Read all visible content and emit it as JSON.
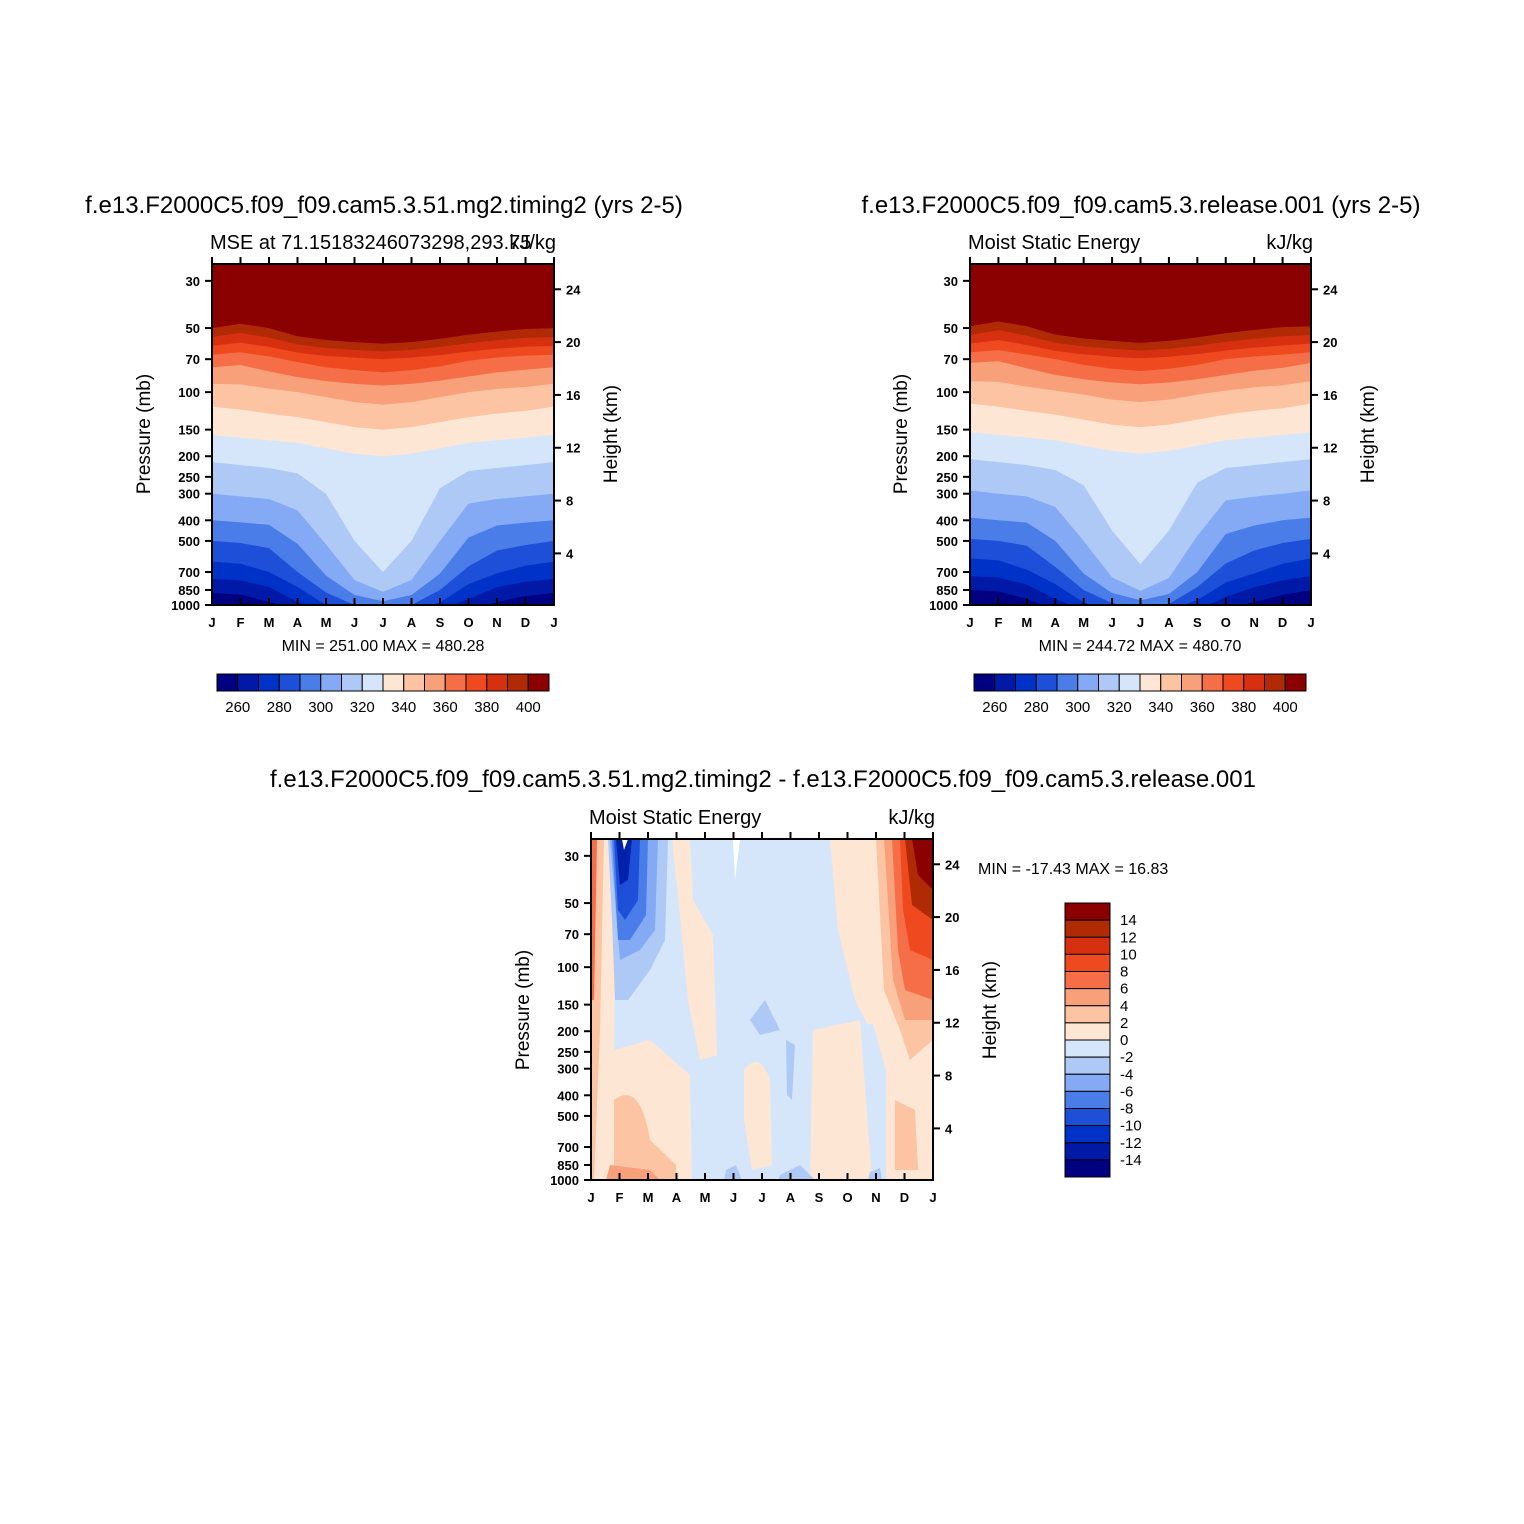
{
  "chart_data": [
    {
      "type": "heatmap",
      "title": "f.e13.F2000C5.f09_f09.cam5.3.51.mg2.timing2 (yrs 2-5)",
      "subtitle_left": "MSE at 71.15183246073298,293.75",
      "subtitle_right": "kJ/kg",
      "xlabel": "",
      "ylabel": "Pressure (mb)",
      "ylabel_right": "Height (km)",
      "x_tick_labels": [
        "J",
        "F",
        "M",
        "A",
        "M",
        "J",
        "J",
        "A",
        "S",
        "O",
        "N",
        "D",
        "J"
      ],
      "y_ticks": [
        30,
        50,
        70,
        100,
        150,
        200,
        250,
        300,
        400,
        500,
        700,
        850,
        1000
      ],
      "y_right_ticks": [
        24,
        20,
        16,
        12,
        8,
        4
      ],
      "ylim": [
        1000,
        25
      ],
      "stats": "MIN = 251.00 MAX = 480.28",
      "colorbar_labels": [
        "260",
        "280",
        "300",
        "320",
        "340",
        "360",
        "380",
        "400"
      ],
      "contour_levels": [
        250,
        260,
        270,
        280,
        290,
        300,
        310,
        320,
        330,
        340,
        350,
        360,
        370,
        380,
        390,
        400
      ],
      "months": [
        "J",
        "F",
        "M",
        "A",
        "M",
        "J",
        "J",
        "A",
        "S",
        "O",
        "N",
        "D",
        "J"
      ],
      "mse_profile_pressures": [
        1000,
        850,
        700,
        500,
        400,
        300,
        250,
        200,
        150,
        100,
        70,
        50,
        30
      ],
      "mse_profiles": [
        [
          252,
          262,
          275,
          290,
          300,
          310,
          315,
          322,
          332,
          345,
          365,
          400,
          450
        ],
        [
          253,
          263,
          276,
          291,
          301,
          311,
          316,
          323,
          333,
          346,
          363,
          395,
          450
        ],
        [
          258,
          268,
          280,
          293,
          302,
          312,
          317,
          324,
          334,
          348,
          367,
          400,
          450
        ],
        [
          268,
          278,
          290,
          301,
          307,
          315,
          319,
          325,
          335,
          350,
          372,
          410,
          450
        ],
        [
          280,
          292,
          302,
          311,
          315,
          320,
          322,
          327,
          337,
          352,
          376,
          415,
          450
        ],
        [
          290,
          305,
          314,
          320,
          322,
          324,
          325,
          329,
          339,
          354,
          378,
          418,
          450
        ],
        [
          296,
          312,
          320,
          324,
          325,
          327,
          328,
          330,
          340,
          355,
          380,
          420,
          450
        ],
        [
          290,
          305,
          314,
          320,
          322,
          324,
          325,
          329,
          339,
          354,
          378,
          418,
          450
        ],
        [
          278,
          290,
          301,
          310,
          314,
          319,
          322,
          327,
          337,
          352,
          375,
          413,
          450
        ],
        [
          266,
          276,
          288,
          299,
          305,
          313,
          318,
          325,
          335,
          350,
          371,
          408,
          450
        ],
        [
          258,
          268,
          281,
          294,
          302,
          312,
          317,
          324,
          334,
          348,
          368,
          404,
          450
        ],
        [
          254,
          264,
          277,
          292,
          301,
          311,
          316,
          323,
          333,
          347,
          366,
          401,
          450
        ],
        [
          252,
          262,
          275,
          290,
          300,
          310,
          315,
          322,
          332,
          345,
          365,
          400,
          450
        ]
      ]
    },
    {
      "type": "heatmap",
      "title": "f.e13.F2000C5.f09_f09.cam5.3.release.001 (yrs 2-5)",
      "subtitle_left": "Moist Static Energy",
      "subtitle_right": "kJ/kg",
      "xlabel": "",
      "ylabel": "Pressure (mb)",
      "ylabel_right": "Height (km)",
      "x_tick_labels": [
        "J",
        "F",
        "M",
        "A",
        "M",
        "J",
        "J",
        "A",
        "S",
        "O",
        "N",
        "D",
        "J"
      ],
      "y_ticks": [
        30,
        50,
        70,
        100,
        150,
        200,
        250,
        300,
        400,
        500,
        700,
        850,
        1000
      ],
      "y_right_ticks": [
        24,
        20,
        16,
        12,
        8,
        4
      ],
      "ylim": [
        1000,
        25
      ],
      "stats": "MIN = 244.72 MAX = 480.70",
      "colorbar_labels": [
        "260",
        "280",
        "300",
        "320",
        "340",
        "360",
        "380",
        "400"
      ],
      "contour_levels": [
        250,
        260,
        270,
        280,
        290,
        300,
        310,
        320,
        330,
        340,
        350,
        360,
        370,
        380,
        390,
        400
      ],
      "months": [
        "J",
        "F",
        "M",
        "A",
        "M",
        "J",
        "J",
        "A",
        "S",
        "O",
        "N",
        "D",
        "J"
      ],
      "mse_profile_pressures": [
        1000,
        850,
        700,
        500,
        400,
        300,
        250,
        200,
        150,
        100,
        70,
        50,
        30
      ],
      "mse_profiles": [
        [
          248,
          260,
          273,
          289,
          299,
          309,
          314,
          321,
          331,
          344,
          362,
          398,
          450
        ],
        [
          250,
          261,
          274,
          290,
          300,
          310,
          315,
          322,
          332,
          345,
          361,
          392,
          450
        ],
        [
          256,
          266,
          279,
          292,
          301,
          311,
          316,
          323,
          333,
          347,
          365,
          398,
          450
        ],
        [
          266,
          276,
          288,
          300,
          306,
          314,
          318,
          324,
          334,
          349,
          370,
          408,
          450
        ],
        [
          278,
          290,
          301,
          310,
          314,
          319,
          321,
          326,
          336,
          351,
          374,
          413,
          450
        ],
        [
          288,
          303,
          313,
          319,
          321,
          323,
          324,
          328,
          338,
          353,
          377,
          416,
          450
        ],
        [
          295,
          311,
          319,
          323,
          324,
          326,
          327,
          329,
          339,
          354,
          379,
          419,
          450
        ],
        [
          289,
          304,
          313,
          319,
          321,
          323,
          324,
          328,
          338,
          353,
          377,
          416,
          450
        ],
        [
          276,
          288,
          300,
          309,
          313,
          318,
          321,
          326,
          336,
          351,
          374,
          411,
          450
        ],
        [
          264,
          275,
          287,
          298,
          304,
          312,
          317,
          324,
          334,
          349,
          370,
          406,
          450
        ],
        [
          258,
          268,
          281,
          294,
          302,
          311,
          316,
          323,
          333,
          347,
          367,
          402,
          450
        ],
        [
          254,
          263,
          276,
          291,
          300,
          310,
          315,
          322,
          332,
          346,
          365,
          399,
          450
        ],
        [
          248,
          260,
          273,
          289,
          299,
          309,
          314,
          321,
          331,
          344,
          362,
          398,
          450
        ]
      ]
    },
    {
      "type": "heatmap",
      "title": "f.e13.F2000C5.f09_f09.cam5.3.51.mg2.timing2 - f.e13.F2000C5.f09_f09.cam5.3.release.001",
      "subtitle_left": "Moist Static Energy",
      "subtitle_right": "kJ/kg",
      "xlabel": "",
      "ylabel": "Pressure (mb)",
      "ylabel_right": "Height (km)",
      "x_tick_labels": [
        "J",
        "F",
        "M",
        "A",
        "M",
        "J",
        "J",
        "A",
        "S",
        "O",
        "N",
        "D",
        "J"
      ],
      "y_ticks": [
        30,
        50,
        70,
        100,
        150,
        200,
        250,
        300,
        400,
        500,
        700,
        850,
        1000
      ],
      "y_right_ticks": [
        24,
        20,
        16,
        12,
        8,
        4
      ],
      "ylim": [
        1000,
        25
      ],
      "stats": "MIN = -17.43 MAX =   16.83",
      "colorbar_labels": [
        "14",
        "12",
        "10",
        "8",
        "6",
        "4",
        "2",
        "0",
        "-2",
        "-4",
        "-6",
        "-8",
        "-10",
        "-12",
        "-14"
      ],
      "contour_levels": [
        -16,
        -14,
        -12,
        -10,
        -8,
        -6,
        -4,
        -2,
        0,
        2,
        4,
        6,
        8,
        10,
        12,
        14
      ]
    }
  ]
}
